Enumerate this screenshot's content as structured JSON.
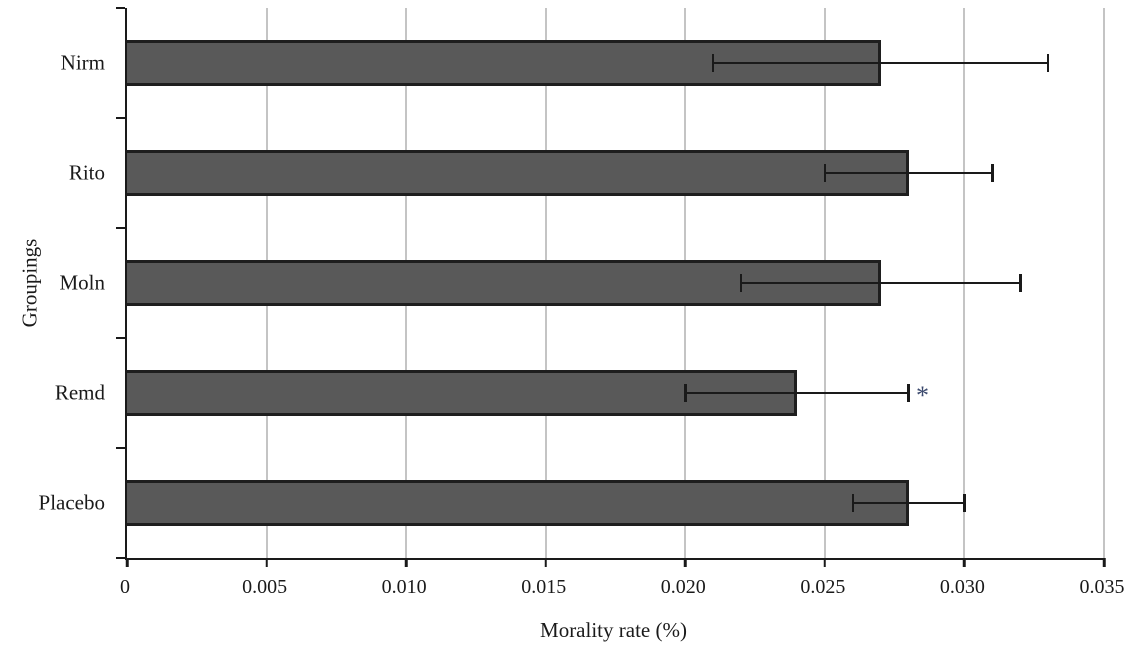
{
  "chart_data": {
    "type": "bar",
    "orientation": "horizontal",
    "title": "",
    "xlabel": "Morality rate (%)",
    "ylabel": "Groupings",
    "categories": [
      "Nirm",
      "Rito",
      "Moln",
      "Remd",
      "Placebo"
    ],
    "values": [
      0.027,
      0.028,
      0.027,
      0.024,
      0.028
    ],
    "error_low": [
      0.021,
      0.025,
      0.022,
      0.02,
      0.026
    ],
    "error_high": [
      0.033,
      0.031,
      0.032,
      0.028,
      0.03
    ],
    "annotations": [
      {
        "category": "Remd",
        "text": "*",
        "x": 0.0285
      }
    ],
    "xlim": [
      0,
      0.035
    ],
    "xticks": [
      0,
      0.005,
      0.01,
      0.015,
      0.02,
      0.025,
      0.03,
      0.035
    ],
    "xtick_labels": [
      "0",
      "0.005",
      "0.010",
      "0.015",
      "0.020",
      "0.025",
      "0.030",
      "0.035"
    ],
    "grid": "vertical",
    "legend": "none",
    "colors": {
      "bar_fill": "#595959",
      "bar_border": "#1e1e1e",
      "gridline": "#c4c4c4",
      "axis": "#1a1a1a",
      "text": "#1a1a1a",
      "annotation": "#3c4a6e"
    }
  }
}
